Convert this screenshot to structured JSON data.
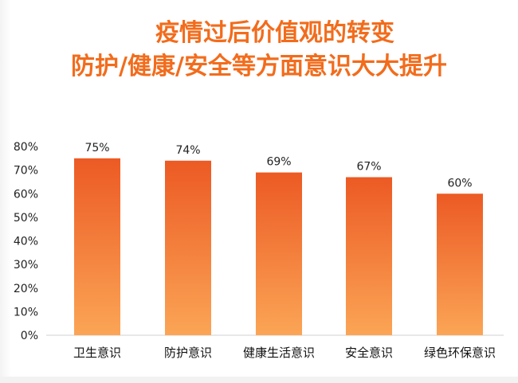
{
  "chart_data": {
    "type": "bar",
    "title": "疫情过后价值观的转变",
    "subtitle": "防护/健康/安全等方面意识大大提升",
    "categories": [
      "卫生意识",
      "防护意识",
      "健康生活意识",
      "安全意识",
      "绿色环保意识"
    ],
    "values": [
      75,
      74,
      69,
      67,
      60
    ],
    "value_labels": [
      "75%",
      "74%",
      "69%",
      "67%",
      "60%"
    ],
    "ylim": [
      0,
      80
    ],
    "yticks": [
      "0%",
      "10%",
      "20%",
      "30%",
      "40%",
      "50%",
      "60%",
      "70%",
      "80%"
    ],
    "xlabel": "",
    "ylabel": "",
    "grid": false,
    "colors": {
      "bar_top": "#ec5a24",
      "bar_bottom": "#fba556",
      "title": "#f26c1c"
    }
  }
}
